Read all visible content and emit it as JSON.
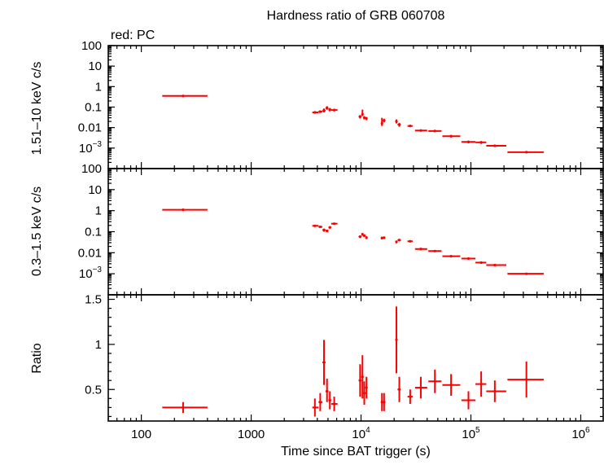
{
  "chart_data": {
    "type": "scatter",
    "title": "Hardness ratio of GRB 060708",
    "subtitle": "red: PC",
    "xlabel": "Time since BAT trigger (s)",
    "xscale": "log",
    "xlim": [
      50,
      1600000
    ],
    "x_ticks": [
      {
        "value": 100,
        "label": "100",
        "exp": ""
      },
      {
        "value": 1000,
        "label": "1000",
        "exp": ""
      },
      {
        "value": 10000,
        "label": "10",
        "exp": "4"
      },
      {
        "value": 100000,
        "label": "10",
        "exp": "5"
      },
      {
        "value": 1000000,
        "label": "10",
        "exp": "6"
      }
    ],
    "color": "#ff0000",
    "panels": [
      {
        "ylabel": "1.51–10 keV c/s",
        "yscale": "log",
        "ylim": [
          0.0001,
          100
        ],
        "y_ticks": [
          {
            "value": 100,
            "label": "100",
            "exp": ""
          },
          {
            "value": 10,
            "label": "10",
            "exp": ""
          },
          {
            "value": 1,
            "label": "1",
            "exp": ""
          },
          {
            "value": 0.1,
            "label": "0.1",
            "exp": ""
          },
          {
            "value": 0.01,
            "label": "0.01",
            "exp": ""
          },
          {
            "value": 0.001,
            "label": "10",
            "exp": "−3"
          }
        ],
        "points": [
          {
            "x": 240,
            "xlo": 155,
            "xhi": 400,
            "y": 0.35,
            "ylo": 0.31,
            "yhi": 0.39
          },
          {
            "x": 3800,
            "xlo": 3600,
            "xhi": 4100,
            "y": 0.055,
            "ylo": 0.048,
            "yhi": 0.063
          },
          {
            "x": 4250,
            "xlo": 4100,
            "xhi": 4450,
            "y": 0.06,
            "ylo": 0.052,
            "yhi": 0.069
          },
          {
            "x": 4600,
            "xlo": 4450,
            "xhi": 4750,
            "y": 0.068,
            "ylo": 0.055,
            "yhi": 0.085
          },
          {
            "x": 4900,
            "xlo": 4750,
            "xhi": 5050,
            "y": 0.09,
            "ylo": 0.074,
            "yhi": 0.11
          },
          {
            "x": 5200,
            "xlo": 5050,
            "xhi": 5350,
            "y": 0.075,
            "ylo": 0.062,
            "yhi": 0.09
          },
          {
            "x": 5700,
            "xlo": 5350,
            "xhi": 6100,
            "y": 0.072,
            "ylo": 0.062,
            "yhi": 0.083
          },
          {
            "x": 9800,
            "xlo": 9500,
            "xhi": 10100,
            "y": 0.034,
            "ylo": 0.028,
            "yhi": 0.041
          },
          {
            "x": 10300,
            "xlo": 10100,
            "xhi": 10500,
            "y": 0.045,
            "ylo": 0.036,
            "yhi": 0.075
          },
          {
            "x": 10700,
            "xlo": 10500,
            "xhi": 11000,
            "y": 0.03,
            "ylo": 0.025,
            "yhi": 0.036
          },
          {
            "x": 11200,
            "xlo": 11000,
            "xhi": 11400,
            "y": 0.028,
            "ylo": 0.023,
            "yhi": 0.033
          },
          {
            "x": 15500,
            "xlo": 15200,
            "xhi": 15800,
            "y": 0.016,
            "ylo": 0.012,
            "yhi": 0.03
          },
          {
            "x": 16200,
            "xlo": 15800,
            "xhi": 16600,
            "y": 0.022,
            "ylo": 0.018,
            "yhi": 0.027
          },
          {
            "x": 21000,
            "xlo": 20500,
            "xhi": 21500,
            "y": 0.02,
            "ylo": 0.016,
            "yhi": 0.025
          },
          {
            "x": 22300,
            "xlo": 21500,
            "xhi": 23000,
            "y": 0.014,
            "ylo": 0.011,
            "yhi": 0.017
          },
          {
            "x": 28000,
            "xlo": 26500,
            "xhi": 29500,
            "y": 0.012,
            "ylo": 0.0105,
            "yhi": 0.0137
          },
          {
            "x": 35000,
            "xlo": 31000,
            "xhi": 40000,
            "y": 0.0072,
            "ylo": 0.0064,
            "yhi": 0.0081
          },
          {
            "x": 47000,
            "xlo": 41000,
            "xhi": 54000,
            "y": 0.0068,
            "ylo": 0.006,
            "yhi": 0.0077
          },
          {
            "x": 66000,
            "xlo": 55000,
            "xhi": 80000,
            "y": 0.0038,
            "ylo": 0.0033,
            "yhi": 0.0044
          },
          {
            "x": 95000,
            "xlo": 82000,
            "xhi": 110000,
            "y": 0.002,
            "ylo": 0.0017,
            "yhi": 0.0023
          },
          {
            "x": 124000,
            "xlo": 110000,
            "xhi": 138000,
            "y": 0.0019,
            "ylo": 0.0016,
            "yhi": 0.0022
          },
          {
            "x": 165000,
            "xlo": 138000,
            "xhi": 210000,
            "y": 0.0013,
            "ylo": 0.00115,
            "yhi": 0.00145
          },
          {
            "x": 320000,
            "xlo": 215000,
            "xhi": 460000,
            "y": 0.00063,
            "ylo": 0.00055,
            "yhi": 0.00071
          }
        ]
      },
      {
        "ylabel": "0.3–1.5 keV c/s",
        "yscale": "log",
        "ylim": [
          0.0001,
          100
        ],
        "y_ticks": [
          {
            "value": 100,
            "label": "100",
            "exp": ""
          },
          {
            "value": 10,
            "label": "10",
            "exp": ""
          },
          {
            "value": 1,
            "label": "1",
            "exp": ""
          },
          {
            "value": 0.1,
            "label": "0.1",
            "exp": ""
          },
          {
            "value": 0.01,
            "label": "0.01",
            "exp": ""
          },
          {
            "value": 0.001,
            "label": "10",
            "exp": "−3"
          }
        ],
        "points": [
          {
            "x": 240,
            "xlo": 155,
            "xhi": 400,
            "y": 1.1,
            "ylo": 1.04,
            "yhi": 1.16
          },
          {
            "x": 3800,
            "xlo": 3600,
            "xhi": 4100,
            "y": 0.19,
            "ylo": 0.175,
            "yhi": 0.205
          },
          {
            "x": 4250,
            "xlo": 4100,
            "xhi": 4450,
            "y": 0.17,
            "ylo": 0.155,
            "yhi": 0.185
          },
          {
            "x": 4600,
            "xlo": 4450,
            "xhi": 4750,
            "y": 0.12,
            "ylo": 0.1,
            "yhi": 0.14
          },
          {
            "x": 4900,
            "xlo": 4750,
            "xhi": 5050,
            "y": 0.11,
            "ylo": 0.095,
            "yhi": 0.125
          },
          {
            "x": 5200,
            "xlo": 5050,
            "xhi": 5350,
            "y": 0.16,
            "ylo": 0.14,
            "yhi": 0.18
          },
          {
            "x": 5700,
            "xlo": 5350,
            "xhi": 6100,
            "y": 0.24,
            "ylo": 0.22,
            "yhi": 0.26
          },
          {
            "x": 9800,
            "xlo": 9500,
            "xhi": 10100,
            "y": 0.058,
            "ylo": 0.05,
            "yhi": 0.066
          },
          {
            "x": 10300,
            "xlo": 10100,
            "xhi": 10500,
            "y": 0.075,
            "ylo": 0.065,
            "yhi": 0.086
          },
          {
            "x": 10700,
            "xlo": 10500,
            "xhi": 11000,
            "y": 0.065,
            "ylo": 0.056,
            "yhi": 0.074
          },
          {
            "x": 11200,
            "xlo": 11000,
            "xhi": 11400,
            "y": 0.052,
            "ylo": 0.045,
            "yhi": 0.06
          },
          {
            "x": 15500,
            "xlo": 15200,
            "xhi": 15800,
            "y": 0.05,
            "ylo": 0.043,
            "yhi": 0.057
          },
          {
            "x": 16200,
            "xlo": 15800,
            "xhi": 16600,
            "y": 0.052,
            "ylo": 0.046,
            "yhi": 0.058
          },
          {
            "x": 21000,
            "xlo": 20500,
            "xhi": 21500,
            "y": 0.033,
            "ylo": 0.028,
            "yhi": 0.038
          },
          {
            "x": 22300,
            "xlo": 21500,
            "xhi": 23000,
            "y": 0.04,
            "ylo": 0.035,
            "yhi": 0.045
          },
          {
            "x": 28000,
            "xlo": 26500,
            "xhi": 29500,
            "y": 0.035,
            "ylo": 0.031,
            "yhi": 0.039
          },
          {
            "x": 35000,
            "xlo": 31000,
            "xhi": 40000,
            "y": 0.015,
            "ylo": 0.0135,
            "yhi": 0.0165
          },
          {
            "x": 47000,
            "xlo": 41000,
            "xhi": 54000,
            "y": 0.012,
            "ylo": 0.0108,
            "yhi": 0.0132
          },
          {
            "x": 66000,
            "xlo": 55000,
            "xhi": 80000,
            "y": 0.0068,
            "ylo": 0.0061,
            "yhi": 0.0075
          },
          {
            "x": 95000,
            "xlo": 82000,
            "xhi": 110000,
            "y": 0.0053,
            "ylo": 0.0047,
            "yhi": 0.0059
          },
          {
            "x": 124000,
            "xlo": 110000,
            "xhi": 138000,
            "y": 0.0034,
            "ylo": 0.003,
            "yhi": 0.0038
          },
          {
            "x": 165000,
            "xlo": 138000,
            "xhi": 210000,
            "y": 0.0026,
            "ylo": 0.0023,
            "yhi": 0.0029
          },
          {
            "x": 320000,
            "xlo": 215000,
            "xhi": 460000,
            "y": 0.001,
            "ylo": 0.0009,
            "yhi": 0.0011
          }
        ]
      },
      {
        "ylabel": "Ratio",
        "yscale": "linear",
        "ylim": [
          0.15,
          1.55
        ],
        "y_ticks": [
          {
            "value": 1.5,
            "label": "1.5",
            "exp": ""
          },
          {
            "value": 1,
            "label": "1",
            "exp": ""
          },
          {
            "value": 0.5,
            "label": "0.5",
            "exp": ""
          }
        ],
        "points": [
          {
            "x": 240,
            "xlo": 155,
            "xhi": 400,
            "y": 0.3,
            "ylo": 0.24,
            "yhi": 0.36
          },
          {
            "x": 3800,
            "xlo": 3600,
            "xhi": 4100,
            "y": 0.3,
            "ylo": 0.2,
            "yhi": 0.4
          },
          {
            "x": 4250,
            "xlo": 4100,
            "xhi": 4450,
            "y": 0.36,
            "ylo": 0.26,
            "yhi": 0.46
          },
          {
            "x": 4600,
            "xlo": 4450,
            "xhi": 4750,
            "y": 0.8,
            "ylo": 0.55,
            "yhi": 1.05
          },
          {
            "x": 4900,
            "xlo": 4750,
            "xhi": 5050,
            "y": 0.48,
            "ylo": 0.36,
            "yhi": 0.62
          },
          {
            "x": 5200,
            "xlo": 5050,
            "xhi": 5350,
            "y": 0.38,
            "ylo": 0.28,
            "yhi": 0.48
          },
          {
            "x": 5700,
            "xlo": 5350,
            "xhi": 6100,
            "y": 0.34,
            "ylo": 0.26,
            "yhi": 0.42
          },
          {
            "x": 9800,
            "xlo": 9500,
            "xhi": 10100,
            "y": 0.6,
            "ylo": 0.42,
            "yhi": 0.78
          },
          {
            "x": 10300,
            "xlo": 10100,
            "xhi": 10500,
            "y": 0.64,
            "ylo": 0.4,
            "yhi": 0.88
          },
          {
            "x": 10700,
            "xlo": 10500,
            "xhi": 11000,
            "y": 0.46,
            "ylo": 0.33,
            "yhi": 0.59
          },
          {
            "x": 11200,
            "xlo": 11000,
            "xhi": 11400,
            "y": 0.52,
            "ylo": 0.4,
            "yhi": 0.64
          },
          {
            "x": 15500,
            "xlo": 15200,
            "xhi": 15800,
            "y": 0.36,
            "ylo": 0.26,
            "yhi": 0.46
          },
          {
            "x": 16200,
            "xlo": 15800,
            "xhi": 16600,
            "y": 0.36,
            "ylo": 0.26,
            "yhi": 0.46
          },
          {
            "x": 21000,
            "xlo": 20500,
            "xhi": 21500,
            "y": 1.05,
            "ylo": 0.68,
            "yhi": 1.42
          },
          {
            "x": 22300,
            "xlo": 21500,
            "xhi": 23000,
            "y": 0.5,
            "ylo": 0.36,
            "yhi": 0.64
          },
          {
            "x": 28000,
            "xlo": 26500,
            "xhi": 29500,
            "y": 0.42,
            "ylo": 0.34,
            "yhi": 0.5
          },
          {
            "x": 35000,
            "xlo": 31000,
            "xhi": 40000,
            "y": 0.52,
            "ylo": 0.4,
            "yhi": 0.64
          },
          {
            "x": 47000,
            "xlo": 41000,
            "xhi": 54000,
            "y": 0.59,
            "ylo": 0.46,
            "yhi": 0.72
          },
          {
            "x": 66000,
            "xlo": 55000,
            "xhi": 80000,
            "y": 0.55,
            "ylo": 0.43,
            "yhi": 0.67
          },
          {
            "x": 95000,
            "xlo": 82000,
            "xhi": 110000,
            "y": 0.38,
            "ylo": 0.28,
            "yhi": 0.48
          },
          {
            "x": 124000,
            "xlo": 110000,
            "xhi": 138000,
            "y": 0.56,
            "ylo": 0.42,
            "yhi": 0.7
          },
          {
            "x": 165000,
            "xlo": 138000,
            "xhi": 210000,
            "y": 0.48,
            "ylo": 0.36,
            "yhi": 0.6
          },
          {
            "x": 320000,
            "xlo": 215000,
            "xhi": 460000,
            "y": 0.61,
            "ylo": 0.41,
            "yhi": 0.81
          }
        ]
      }
    ]
  }
}
